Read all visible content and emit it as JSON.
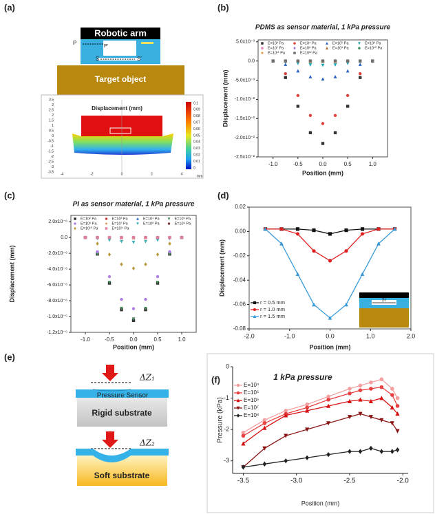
{
  "panel_labels": [
    "(a)",
    "(b)",
    "(c)",
    "(d)",
    "(e)",
    "(f)"
  ],
  "diagram_a": {
    "arm": "Robotic arm",
    "target": "Target object",
    "p": "P",
    "p_prime": "P'",
    "s": "S",
    "s_prime": "S'",
    "plot_title": "Displacement (mm)",
    "colorbar_ticks": [
      "0.1",
      "0.09",
      "0.08",
      "0.07",
      "0.06",
      "0.05",
      "0.04",
      "0.03",
      "0.02",
      "0.01",
      "0"
    ],
    "y_ticks": [
      "3.5",
      "3",
      "2.5",
      "2",
      "1.5",
      "1",
      "0.5",
      "0",
      "-0.5",
      "-1",
      "-1.5",
      "-2",
      "-2.5",
      "-3",
      "-3.5"
    ],
    "x_ticks": [
      "-4",
      "-2",
      "0",
      "2",
      "4"
    ],
    "unit": "mm"
  },
  "diagram_e": {
    "dz1": "ΔZ₁",
    "dz2": "ΔZ₂",
    "sensor": "Pressure Sensor",
    "rigid": "Rigid substrate",
    "soft": "Soft substrate"
  },
  "chart_data": [
    {
      "type": "scatter",
      "title": "PDMS as sensor material, 1 kPa pressure",
      "xlabel": "Position (mm)",
      "ylabel": "Displacement (mm)",
      "box": true,
      "legend": "top",
      "x": [
        -1,
        -0.75,
        -0.5,
        -0.25,
        0,
        0.25,
        0.5,
        0.75,
        1
      ],
      "xlim": [
        -1.3,
        1.3
      ],
      "xticks": [
        {
          "value": -1,
          "label": "-1.0"
        },
        -0.5,
        {
          "value": 0,
          "label": "0.0"
        },
        0.5,
        {
          "value": 1,
          "label": "1.0"
        }
      ],
      "ylim": [
        -0.025,
        0.0055
      ],
      "yticks": [
        {
          "value": 0.005,
          "label": "5.0x10⁻³"
        },
        {
          "value": 0,
          "label": "0.0"
        },
        {
          "value": -0.005,
          "label": "-5.0x10⁻³"
        },
        {
          "value": -0.01,
          "label": "-1.0x10⁻²"
        },
        {
          "value": -0.015,
          "label": "-1.5x10⁻²"
        },
        {
          "value": -0.02,
          "label": "-2.0x10⁻²"
        },
        {
          "value": -0.025,
          "label": "-2.5x10⁻²"
        }
      ],
      "series": [
        {
          "name": "E=10³ Pa",
          "color": "#333333",
          "marker": "square",
          "values": [
            0,
            -0.0043,
            -0.0118,
            -0.0187,
            -0.0215,
            -0.0187,
            -0.0118,
            -0.0043,
            0
          ]
        },
        {
          "name": "E=10⁴ Pa",
          "color": "#e0403a",
          "marker": "circle",
          "values": [
            0,
            -0.0033,
            -0.009,
            -0.0142,
            -0.0163,
            -0.0142,
            -0.009,
            -0.0033,
            0
          ]
        },
        {
          "name": "E=10⁵ Pa",
          "color": "#2a62c0",
          "marker": "triangle",
          "values": [
            0,
            -0.0009,
            -0.0026,
            -0.0041,
            -0.0047,
            -0.0041,
            -0.0026,
            -0.0009,
            0
          ]
        },
        {
          "name": "E=10⁶ Pa",
          "color": "#20a8b8",
          "marker": "triangle-down",
          "values": [
            0,
            -0.0002,
            -0.0006,
            -0.001,
            -0.0011,
            -0.001,
            -0.0006,
            -0.0002,
            0
          ]
        },
        {
          "name": "E=10⁷ Pa",
          "color": "#e07ab0",
          "marker": "circle",
          "values": [
            0,
            0,
            0,
            0,
            0,
            0,
            0,
            0,
            0
          ]
        },
        {
          "name": "E=10⁸ Pa",
          "color": "#a070d0",
          "marker": "diamond",
          "values": [
            0,
            0,
            0,
            0,
            0,
            0,
            0,
            0,
            0
          ]
        },
        {
          "name": "E=10⁹ Pa",
          "color": "#a06a30",
          "marker": "triangle",
          "values": [
            0,
            0,
            0,
            0,
            0,
            0,
            0,
            0,
            0
          ]
        },
        {
          "name": "E=10¹⁰ Pa",
          "color": "#3a8a5a",
          "marker": "circle",
          "values": [
            0,
            0,
            0,
            0,
            0,
            0,
            0,
            0,
            0
          ]
        },
        {
          "name": "E=10¹¹ Pa",
          "color": "#e08a20",
          "marker": "star",
          "values": [
            0,
            0,
            -0.0001,
            -0.0002,
            -0.0002,
            -0.0002,
            -0.0001,
            0,
            0
          ]
        },
        {
          "name": "E=10¹² Pa",
          "color": "#707070",
          "marker": "square",
          "values": [
            0,
            0,
            0,
            0,
            0,
            0,
            0,
            0,
            0
          ]
        }
      ]
    },
    {
      "type": "scatter",
      "title": "PI as sensor material, 1 kPa pressure",
      "xlabel": "Position (mm)",
      "ylabel": "Displacement (mm)",
      "box": true,
      "legend": "top",
      "x": [
        -1,
        -0.75,
        -0.5,
        -0.25,
        0,
        0.25,
        0.5,
        0.75,
        1
      ],
      "xlim": [
        -1.3,
        1.3
      ],
      "xticks": [
        {
          "value": -1,
          "label": "-1.0"
        },
        -0.5,
        {
          "value": 0,
          "label": "0.0"
        },
        0.5,
        {
          "value": 1,
          "label": "1.0"
        }
      ],
      "ylim": [
        -1.2e-05,
        2.8e-06
      ],
      "yticks": [
        {
          "value": 2e-06,
          "label": "2.0x10⁻⁶"
        },
        {
          "value": 0,
          "label": "0.0"
        },
        {
          "value": -2e-06,
          "label": "-2.0x10⁻⁶"
        },
        {
          "value": -4e-06,
          "label": "-4.0x10⁻⁶"
        },
        {
          "value": -6e-06,
          "label": "-6.0x10⁻⁶"
        },
        {
          "value": -8e-06,
          "label": "-8.0x10⁻⁶"
        },
        {
          "value": -1e-05,
          "label": "-1.0x10⁻⁵"
        },
        {
          "value": -1.2e-05,
          "label": "-1.2x10⁻⁵"
        }
      ],
      "series": [
        {
          "name": "E=10² Pa",
          "color": "#333333",
          "marker": "square",
          "values": [
            0,
            -2.1e-06,
            -5.78e-06,
            -9.14e-06,
            -1.05e-05,
            -9.14e-06,
            -5.78e-06,
            -2.1e-06,
            0
          ]
        },
        {
          "name": "E=10³ Pa",
          "color": "#d04040",
          "marker": "circle",
          "values": [
            0,
            0,
            0,
            0,
            0,
            0,
            0,
            0,
            0
          ]
        },
        {
          "name": "E=10⁴ Pa",
          "color": "#3070c0",
          "marker": "triangle",
          "values": [
            0,
            0,
            0,
            0,
            0,
            0,
            0,
            0,
            0
          ]
        },
        {
          "name": "E=10⁵ Pa",
          "color": "#4a8a5a",
          "marker": "triangle-down",
          "values": [
            0,
            -2.06e-06,
            -5.67e-06,
            -8.96e-06,
            -1.03e-05,
            -8.96e-06,
            -5.67e-06,
            -2.06e-06,
            0
          ]
        },
        {
          "name": "E=10⁶ Pa",
          "color": "#b080e0",
          "marker": "circle",
          "values": [
            0,
            -1.8e-06,
            -4.95e-06,
            -7.83e-06,
            -9e-06,
            -7.83e-06,
            -4.95e-06,
            -1.8e-06,
            0
          ]
        },
        {
          "name": "E=10⁷ Pa",
          "color": "#e08a40",
          "marker": "star",
          "values": [
            0,
            -2e-08,
            -6e-08,
            -9e-08,
            -1e-07,
            -9e-08,
            -6e-08,
            -2e-08,
            0
          ]
        },
        {
          "name": "E=10⁸ Pa",
          "color": "#40b0b8",
          "marker": "triangle-down",
          "values": [
            0,
            -1.2e-07,
            -3.3e-07,
            -5.2e-07,
            -6e-07,
            -5.2e-07,
            -3.3e-07,
            -1.2e-07,
            0
          ]
        },
        {
          "name": "E=10⁹ Pa",
          "color": "#804040",
          "marker": "circle",
          "values": [
            0,
            0,
            0,
            0,
            0,
            0,
            0,
            0,
            0
          ]
        },
        {
          "name": "E=10¹⁰ Pa",
          "color": "#b89a40",
          "marker": "diamond",
          "values": [
            0,
            -7.8e-07,
            -2.15e-06,
            -3.39e-06,
            -3.9e-06,
            -3.39e-06,
            -2.15e-06,
            -7.8e-07,
            0
          ]
        },
        {
          "name": "E=10¹¹ Pa",
          "color": "#e080a0",
          "marker": "square",
          "values": [
            0,
            0,
            0,
            0,
            0,
            0,
            0,
            0,
            0
          ]
        }
      ]
    },
    {
      "type": "line",
      "xlabel": "Position (mm)",
      "ylabel": "Displacement (mm)",
      "box": true,
      "legend": "lower left",
      "inset_label": "2r",
      "x": [
        -1.6,
        -1.2,
        -0.8,
        -0.4,
        0,
        0.4,
        0.8,
        1.2,
        1.6
      ],
      "xlim": [
        -2,
        2
      ],
      "xticks": [
        {
          "value": -2,
          "label": "-2.0"
        },
        {
          "value": -1,
          "label": "-1.0"
        },
        {
          "value": 0,
          "label": "0.0"
        },
        {
          "value": 1,
          "label": "1.0"
        },
        {
          "value": 2,
          "label": "2.0"
        }
      ],
      "ylim": [
        -0.08,
        0.02
      ],
      "yticks": [
        0.02,
        {
          "value": 0,
          "label": "0.00"
        },
        -0.02,
        -0.04,
        -0.06,
        -0.08
      ],
      "series": [
        {
          "name": "r = 0.5 mm",
          "color": "#111111",
          "marker": "square",
          "values": [
            0.002,
            0.002,
            0.002,
            0.001,
            -0.002,
            0.001,
            0.002,
            0.002,
            0.002
          ]
        },
        {
          "name": "r = 1.0 mm",
          "color": "#e02020",
          "marker": "circle",
          "values": [
            0.002,
            0.002,
            -0.002,
            -0.016,
            -0.024,
            -0.016,
            -0.002,
            0.002,
            0.002
          ]
        },
        {
          "name": "r = 1.5 mm",
          "color": "#3a9ad8",
          "marker": "triangle",
          "values": [
            0.002,
            -0.01,
            -0.035,
            -0.06,
            -0.071,
            -0.06,
            -0.035,
            -0.01,
            0.002
          ]
        }
      ]
    },
    {
      "type": "line",
      "title": "1 kPa pressure",
      "xlabel": "Position (mm)",
      "ylabel": "Pressure (kPa)",
      "box": false,
      "legend": "upper left",
      "x": [
        -3.5,
        -3.3,
        -3.1,
        -2.9,
        -2.7,
        -2.5,
        -2.4,
        -2.3,
        -2.2,
        -2.1,
        -2.05
      ],
      "xlim": [
        -3.6,
        -1.95
      ],
      "xticks": [
        -3.5,
        {
          "value": -3,
          "label": "-3.0"
        },
        -2.5,
        {
          "value": -2,
          "label": "-2.0"
        }
      ],
      "ylim": [
        -3.4,
        0
      ],
      "yticks": [
        0,
        -1,
        -2,
        -3
      ],
      "series": [
        {
          "name": "E=10⁴",
          "color": "#f4a0a0",
          "marker": "circle",
          "values": [
            -2.1,
            -1.7,
            -1.4,
            -1.2,
            -0.95,
            -0.7,
            -0.6,
            -0.5,
            -0.4,
            -0.7,
            -1
          ]
        },
        {
          "name": "E=10⁵",
          "color": "#e84040",
          "marker": "circle",
          "values": [
            -2.2,
            -1.8,
            -1.5,
            -1.3,
            -1.05,
            -0.85,
            -0.75,
            -0.7,
            -0.65,
            -0.9,
            -1.25
          ]
        },
        {
          "name": "E=10⁶",
          "color": "#d81010",
          "marker": "triangle",
          "values": [
            -2.45,
            -1.95,
            -1.55,
            -1.4,
            -1.25,
            -1.1,
            -1.05,
            -1.1,
            -1,
            -1.3,
            -1.5
          ]
        },
        {
          "name": "E=10⁷",
          "color": "#8b1414",
          "marker": "triangle-down",
          "values": [
            -3.2,
            -2.6,
            -2.2,
            -2,
            -1.8,
            -1.6,
            -1.5,
            -1.6,
            -1.7,
            -1.8,
            -2.05
          ]
        },
        {
          "name": "E=10⁸",
          "color": "#222222",
          "marker": "diamond",
          "values": [
            -3.2,
            -3.1,
            -3,
            -2.9,
            -2.8,
            -2.7,
            -2.7,
            -2.6,
            -2.7,
            -2.7,
            -2.65
          ]
        }
      ]
    }
  ]
}
